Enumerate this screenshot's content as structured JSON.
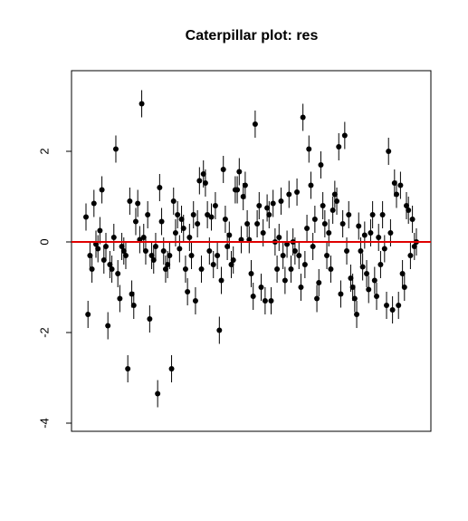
{
  "chart_data": {
    "type": "caterpillar",
    "title": "Caterpillar plot: res",
    "values": [
      0.55,
      -1.6,
      -0.3,
      -0.6,
      0.85,
      -0.05,
      -0.15,
      0.25,
      1.15,
      -0.4,
      -0.1,
      -1.85,
      -0.5,
      -0.6,
      0.1,
      2.05,
      -0.7,
      -1.25,
      -0.1,
      -0.2,
      -0.3,
      -2.8,
      0.9,
      -1.15,
      -1.4,
      0.45,
      0.85,
      0.05,
      3.05,
      0.1,
      -0.2,
      0.6,
      -1.7,
      -0.3,
      -0.4,
      -0.1,
      -3.35,
      1.2,
      0.45,
      -0.2,
      -0.6,
      -0.5,
      -0.3,
      -2.8,
      0.9,
      0.2,
      0.6,
      -0.15,
      0.5,
      0.3,
      -0.6,
      -1.1,
      0.1,
      -0.3,
      0.6,
      -1.3,
      0.4,
      1.35,
      -0.6,
      1.5,
      1.3,
      0.6,
      -0.2,
      0.55,
      -0.5,
      0.8,
      -0.3,
      -1.95,
      -0.85,
      1.6,
      0.5,
      -0.1,
      0.15,
      -0.5,
      -0.4,
      1.15,
      1.15,
      1.55,
      0.05,
      1.0,
      1.25,
      0.4,
      0.05,
      -0.7,
      -1.2,
      2.6,
      0.4,
      0.8,
      -1.0,
      0.2,
      -1.3,
      0.75,
      0.6,
      -1.3,
      0.85,
      0.0,
      -0.6,
      0.1,
      0.9,
      -0.3,
      -0.85,
      -0.05,
      1.05,
      -0.6,
      0.0,
      -0.2,
      1.1,
      -0.3,
      -1.0,
      2.75,
      -0.5,
      0.3,
      2.05,
      1.25,
      -0.1,
      0.5,
      -1.25,
      -0.9,
      1.7,
      0.8,
      0.4,
      -0.3,
      0.2,
      -0.6,
      0.7,
      1.05,
      0.9,
      2.1,
      -1.15,
      0.4,
      2.35,
      -0.2,
      0.6,
      -0.8,
      -1.0,
      -1.25,
      -1.6,
      0.35,
      -0.2,
      -0.55,
      0.15,
      -0.7,
      -1.05,
      0.2,
      0.6,
      -0.85,
      -1.2,
      0.1,
      -0.5,
      0.6,
      -0.15,
      -1.4,
      2.0,
      0.2,
      -1.5,
      1.3,
      1.05,
      -1.4,
      1.25,
      -0.7,
      -1.0,
      0.8,
      0.7,
      -0.3,
      0.5,
      -0.1,
      0.0
    ],
    "error": 0.3,
    "color": "#000000",
    "hline": 0,
    "hline_color": "#e00000",
    "ylim": [
      -4.18,
      3.78
    ],
    "yticks": [
      -4,
      -2,
      0,
      2
    ]
  }
}
